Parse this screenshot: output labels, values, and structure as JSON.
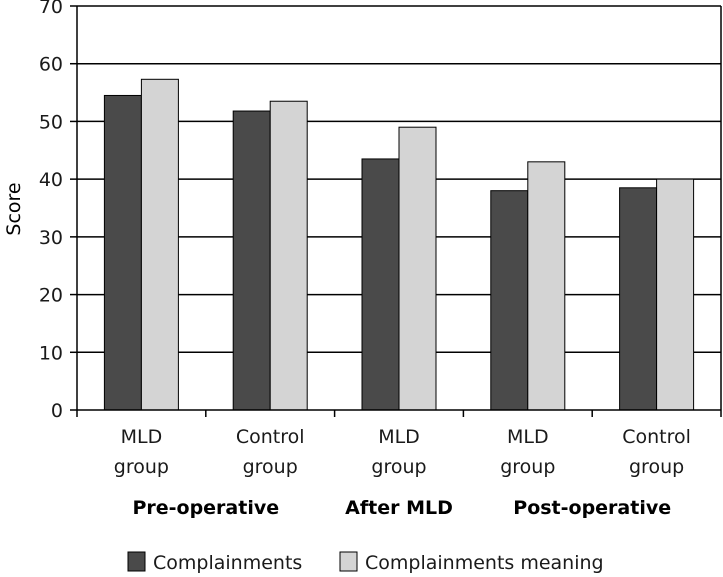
{
  "chart_data": {
    "type": "bar",
    "title": "",
    "xlabel": "",
    "ylabel": "Score",
    "ylim": [
      0,
      70
    ],
    "yticks": [
      0,
      10,
      20,
      30,
      40,
      50,
      60,
      70
    ],
    "grid": true,
    "legend_position": "bottom",
    "categories": [
      {
        "line1": "MLD",
        "line2": "group"
      },
      {
        "line1": "Control",
        "line2": "group"
      },
      {
        "line1": "MLD",
        "line2": "group"
      },
      {
        "line1": "MLD",
        "line2": "group"
      },
      {
        "line1": "Control",
        "line2": "group"
      }
    ],
    "groups": [
      {
        "label": "Pre-operative",
        "span": [
          0,
          1
        ]
      },
      {
        "label": "After MLD",
        "span": [
          2,
          2
        ]
      },
      {
        "label": "Post-operative",
        "span": [
          3,
          4
        ]
      }
    ],
    "series": [
      {
        "name": "Complainments",
        "color": "#4a4a4a",
        "values": [
          54.5,
          51.8,
          43.5,
          38.0,
          38.5
        ]
      },
      {
        "name": "Complainments meaning",
        "color": "#d4d4d4",
        "values": [
          57.3,
          53.5,
          49.0,
          43.0,
          40.0
        ]
      }
    ]
  }
}
